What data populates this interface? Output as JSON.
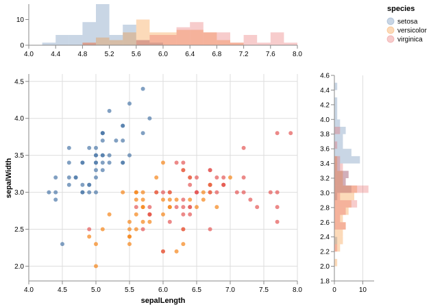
{
  "chart_data": [
    {
      "type": "scatter",
      "name": "scatter",
      "xlabel": "sepalLength",
      "ylabel": "sepalWidth",
      "xlim": [
        4.0,
        8.0
      ],
      "ylim": [
        1.8,
        4.6
      ],
      "xticks": [
        "4.0",
        "4.5",
        "5.0",
        "5.5",
        "6.0",
        "6.5",
        "7.0",
        "7.5",
        "8.0"
      ],
      "yticks": [
        "2.0",
        "2.5",
        "3.0",
        "3.5",
        "4.0",
        "4.5"
      ],
      "grid": true,
      "series": [
        {
          "name": "setosa",
          "points": [
            [
              5.1,
              3.5
            ],
            [
              4.9,
              3.0
            ],
            [
              4.7,
              3.2
            ],
            [
              4.6,
              3.1
            ],
            [
              5.0,
              3.6
            ],
            [
              5.4,
              3.9
            ],
            [
              4.6,
              3.4
            ],
            [
              5.0,
              3.4
            ],
            [
              4.4,
              2.9
            ],
            [
              4.9,
              3.1
            ],
            [
              5.4,
              3.7
            ],
            [
              4.8,
              3.4
            ],
            [
              4.8,
              3.0
            ],
            [
              4.3,
              3.0
            ],
            [
              5.8,
              4.0
            ],
            [
              5.7,
              4.4
            ],
            [
              5.4,
              3.9
            ],
            [
              5.1,
              3.5
            ],
            [
              5.7,
              3.8
            ],
            [
              5.1,
              3.8
            ],
            [
              5.4,
              3.4
            ],
            [
              5.1,
              3.7
            ],
            [
              4.6,
              3.6
            ],
            [
              5.1,
              3.3
            ],
            [
              4.8,
              3.4
            ],
            [
              5.0,
              3.0
            ],
            [
              5.0,
              3.4
            ],
            [
              5.2,
              3.5
            ],
            [
              5.2,
              3.4
            ],
            [
              4.7,
              3.2
            ],
            [
              4.8,
              3.1
            ],
            [
              5.4,
              3.4
            ],
            [
              5.2,
              4.1
            ],
            [
              5.5,
              4.2
            ],
            [
              4.9,
              3.1
            ],
            [
              5.0,
              3.2
            ],
            [
              5.5,
              3.5
            ],
            [
              4.9,
              3.6
            ],
            [
              4.4,
              3.0
            ],
            [
              5.1,
              3.4
            ],
            [
              5.0,
              3.5
            ],
            [
              4.5,
              2.3
            ],
            [
              4.4,
              3.2
            ],
            [
              5.0,
              3.5
            ],
            [
              5.1,
              3.8
            ],
            [
              4.8,
              3.0
            ],
            [
              5.1,
              3.8
            ],
            [
              4.6,
              3.2
            ],
            [
              5.3,
              3.7
            ],
            [
              5.0,
              3.3
            ]
          ]
        },
        {
          "name": "versicolor",
          "points": [
            [
              7.0,
              3.2
            ],
            [
              6.4,
              3.2
            ],
            [
              6.9,
              3.1
            ],
            [
              5.5,
              2.3
            ],
            [
              6.5,
              2.8
            ],
            [
              5.7,
              2.8
            ],
            [
              6.3,
              3.3
            ],
            [
              4.9,
              2.4
            ],
            [
              6.6,
              2.9
            ],
            [
              5.2,
              2.7
            ],
            [
              5.0,
              2.0
            ],
            [
              5.9,
              3.0
            ],
            [
              6.0,
              2.2
            ],
            [
              6.1,
              2.9
            ],
            [
              5.6,
              2.9
            ],
            [
              6.7,
              3.1
            ],
            [
              5.6,
              3.0
            ],
            [
              5.8,
              2.7
            ],
            [
              6.2,
              2.2
            ],
            [
              5.6,
              2.5
            ],
            [
              5.9,
              3.2
            ],
            [
              6.1,
              2.8
            ],
            [
              6.3,
              2.5
            ],
            [
              6.1,
              2.8
            ],
            [
              6.4,
              2.9
            ],
            [
              6.6,
              3.0
            ],
            [
              6.8,
              2.8
            ],
            [
              6.7,
              3.0
            ],
            [
              6.0,
              2.9
            ],
            [
              5.7,
              2.6
            ],
            [
              5.5,
              2.4
            ],
            [
              5.5,
              2.4
            ],
            [
              5.8,
              2.7
            ],
            [
              6.0,
              2.7
            ],
            [
              5.4,
              3.0
            ],
            [
              6.0,
              3.4
            ],
            [
              6.7,
              3.1
            ],
            [
              6.3,
              2.3
            ],
            [
              5.6,
              3.0
            ],
            [
              5.5,
              2.5
            ],
            [
              5.5,
              2.6
            ],
            [
              6.1,
              3.0
            ],
            [
              5.8,
              2.6
            ],
            [
              5.0,
              2.3
            ],
            [
              5.6,
              2.7
            ],
            [
              5.7,
              3.0
            ],
            [
              5.7,
              2.9
            ],
            [
              6.2,
              2.9
            ],
            [
              5.1,
              2.5
            ],
            [
              5.7,
              2.8
            ]
          ]
        },
        {
          "name": "virginica",
          "points": [
            [
              6.3,
              3.3
            ],
            [
              5.8,
              2.7
            ],
            [
              7.1,
              3.0
            ],
            [
              6.3,
              2.9
            ],
            [
              6.5,
              3.0
            ],
            [
              7.6,
              3.0
            ],
            [
              4.9,
              2.5
            ],
            [
              7.3,
              2.9
            ],
            [
              6.7,
              2.5
            ],
            [
              7.2,
              3.6
            ],
            [
              6.5,
              3.2
            ],
            [
              6.4,
              2.7
            ],
            [
              6.8,
              3.0
            ],
            [
              5.7,
              2.5
            ],
            [
              5.8,
              2.8
            ],
            [
              6.4,
              3.2
            ],
            [
              6.5,
              3.0
            ],
            [
              7.7,
              3.8
            ],
            [
              7.7,
              2.6
            ],
            [
              6.0,
              2.2
            ],
            [
              6.9,
              3.2
            ],
            [
              5.6,
              2.8
            ],
            [
              7.7,
              2.8
            ],
            [
              6.3,
              2.7
            ],
            [
              6.7,
              3.3
            ],
            [
              7.2,
              3.2
            ],
            [
              6.2,
              2.8
            ],
            [
              6.1,
              3.0
            ],
            [
              6.4,
              2.8
            ],
            [
              7.2,
              3.0
            ],
            [
              7.4,
              2.8
            ],
            [
              7.9,
              3.8
            ],
            [
              6.4,
              2.8
            ],
            [
              6.3,
              2.8
            ],
            [
              6.1,
              2.6
            ],
            [
              7.7,
              3.0
            ],
            [
              6.3,
              3.4
            ],
            [
              6.4,
              3.1
            ],
            [
              6.0,
              3.0
            ],
            [
              6.9,
              3.1
            ],
            [
              6.7,
              3.1
            ],
            [
              6.9,
              3.1
            ],
            [
              5.8,
              2.7
            ],
            [
              6.8,
              3.2
            ],
            [
              6.7,
              3.3
            ],
            [
              6.7,
              3.0
            ],
            [
              6.3,
              2.5
            ],
            [
              6.5,
              3.0
            ],
            [
              6.2,
              3.4
            ],
            [
              5.9,
              3.0
            ]
          ]
        }
      ]
    },
    {
      "type": "bar",
      "name": "top-histogram",
      "orientation": "vertical",
      "xlim": [
        4.0,
        8.0
      ],
      "xticks": [
        "4.0",
        "4.4",
        "4.8",
        "5.2",
        "5.6",
        "6.0",
        "6.4",
        "6.8",
        "7.2",
        "7.6",
        "8.0"
      ],
      "yticks": [
        "0",
        "10"
      ],
      "ylim": [
        0,
        16
      ],
      "bin_width": 0.2,
      "series": [
        {
          "name": "setosa",
          "bins": [
            [
              4.2,
              1
            ],
            [
              4.4,
              4
            ],
            [
              4.6,
              4
            ],
            [
              4.8,
              9
            ],
            [
              5.0,
              16
            ],
            [
              5.2,
              4
            ],
            [
              5.4,
              8
            ],
            [
              5.6,
              2
            ],
            [
              5.8,
              1
            ]
          ]
        },
        {
          "name": "versicolor",
          "bins": [
            [
              4.8,
              1
            ],
            [
              5.0,
              3
            ],
            [
              5.2,
              2
            ],
            [
              5.4,
              5
            ],
            [
              5.6,
              10
            ],
            [
              5.8,
              5
            ],
            [
              6.0,
              5
            ],
            [
              6.2,
              6
            ],
            [
              6.4,
              6
            ],
            [
              6.6,
              5
            ],
            [
              6.8,
              2
            ],
            [
              7.0,
              1
            ]
          ]
        },
        {
          "name": "virginica",
          "bins": [
            [
              4.8,
              1
            ],
            [
              5.6,
              2
            ],
            [
              5.8,
              4
            ],
            [
              6.0,
              4
            ],
            [
              6.2,
              7
            ],
            [
              6.4,
              9
            ],
            [
              6.6,
              5
            ],
            [
              6.8,
              5
            ],
            [
              7.0,
              1
            ],
            [
              7.2,
              4
            ],
            [
              7.4,
              1
            ],
            [
              7.6,
              5
            ],
            [
              7.8,
              1
            ]
          ]
        }
      ]
    },
    {
      "type": "bar",
      "name": "right-histogram",
      "orientation": "horizontal",
      "ylim": [
        1.8,
        4.6
      ],
      "yticks": [
        "1.8",
        "2.0",
        "2.2",
        "2.4",
        "2.6",
        "2.8",
        "3.0",
        "3.2",
        "3.4",
        "3.6",
        "3.8",
        "4.0",
        "4.2",
        "4.4",
        "4.6"
      ],
      "xticks": [
        "0",
        "10"
      ],
      "xlim": [
        0,
        14
      ],
      "bin_width": 0.1,
      "series": [
        {
          "name": "setosa",
          "bins": [
            [
              2.3,
              1
            ],
            [
              2.9,
              1
            ],
            [
              3.0,
              6
            ],
            [
              3.1,
              4
            ],
            [
              3.2,
              5
            ],
            [
              3.3,
              2
            ],
            [
              3.4,
              9
            ],
            [
              3.5,
              6
            ],
            [
              3.6,
              3
            ],
            [
              3.7,
              3
            ],
            [
              3.8,
              4
            ],
            [
              3.9,
              2
            ],
            [
              4.0,
              1
            ],
            [
              4.1,
              1
            ],
            [
              4.2,
              1
            ],
            [
              4.4,
              1
            ]
          ]
        },
        {
          "name": "versicolor",
          "bins": [
            [
              2.0,
              1
            ],
            [
              2.2,
              2
            ],
            [
              2.3,
              3
            ],
            [
              2.4,
              3
            ],
            [
              2.5,
              4
            ],
            [
              2.6,
              3
            ],
            [
              2.7,
              5
            ],
            [
              2.8,
              6
            ],
            [
              2.9,
              7
            ],
            [
              3.0,
              8
            ],
            [
              3.1,
              3
            ],
            [
              3.2,
              3
            ],
            [
              3.3,
              1
            ],
            [
              3.4,
              1
            ]
          ]
        },
        {
          "name": "virginica",
          "bins": [
            [
              2.2,
              1
            ],
            [
              2.5,
              4
            ],
            [
              2.6,
              2
            ],
            [
              2.7,
              4
            ],
            [
              2.8,
              8
            ],
            [
              2.9,
              2
            ],
            [
              3.0,
              12
            ],
            [
              3.1,
              4
            ],
            [
              3.2,
              5
            ],
            [
              3.3,
              3
            ],
            [
              3.4,
              2
            ],
            [
              3.6,
              1
            ],
            [
              3.8,
              2
            ]
          ]
        }
      ]
    }
  ],
  "legend": {
    "title": "species",
    "placement": "top-right",
    "items": [
      {
        "label": "setosa",
        "color": "#4c78a8"
      },
      {
        "label": "versicolor",
        "color": "#f58518"
      },
      {
        "label": "virginica",
        "color": "#e45756"
      }
    ]
  },
  "colors": {
    "setosa": "#4c78a8",
    "versicolor": "#f58518",
    "virginica": "#e45756"
  }
}
